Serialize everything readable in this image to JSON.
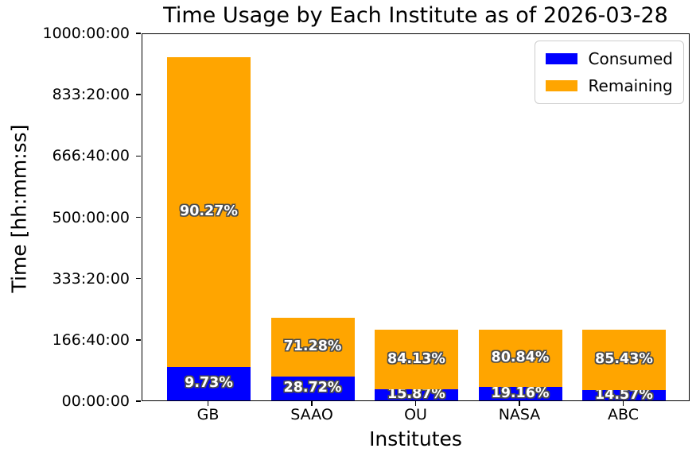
{
  "figure": {
    "title": "Time Usage by Each Institute as of 2026-03-28",
    "xlabel": "Institutes",
    "ylabel": "Time [hh:mm:ss]"
  },
  "colors": {
    "consumed": "#0000ff",
    "remaining": "#ffa500",
    "bar_label_text": "#ffffff",
    "bar_label_outline": "#4d4d4d",
    "axis": "#000000",
    "legend_border": "#cccccc"
  },
  "legend": {
    "items": [
      {
        "label": "Consumed",
        "color": "#0000ff"
      },
      {
        "label": "Remaining",
        "color": "#ffa500"
      }
    ]
  },
  "chart_data": {
    "type": "bar",
    "stacked": true,
    "title": "Time Usage by Each Institute as of 2026-03-28",
    "xlabel": "Institutes",
    "ylabel": "Time [hh:mm:ss]",
    "categories": [
      "GB",
      "SAAO",
      "OU",
      "NASA",
      "ABC"
    ],
    "ylim_hours": [
      0,
      1000
    ],
    "y_ticks": [
      {
        "hours": 0,
        "label": "00:00:00"
      },
      {
        "hours": 166.6667,
        "label": "166:40:00"
      },
      {
        "hours": 333.3333,
        "label": "333:20:00"
      },
      {
        "hours": 500,
        "label": "500:00:00"
      },
      {
        "hours": 666.6667,
        "label": "666:40:00"
      },
      {
        "hours": 833.3333,
        "label": "833:20:00"
      },
      {
        "hours": 1000,
        "label": "1000:00:00"
      }
    ],
    "grid": false,
    "legend_position": "upper right",
    "series": [
      {
        "name": "Consumed",
        "color": "#0000ff",
        "values_hours": [
          90.8,
          64.6,
          30.5,
          36.8,
          28.0
        ],
        "percent_labels": [
          "9.73%",
          "28.72%",
          "15.87%",
          "19.16%",
          "14.57%"
        ]
      },
      {
        "name": "Remaining",
        "color": "#ffa500",
        "values_hours": [
          842.5,
          160.4,
          161.5,
          155.2,
          164.0
        ],
        "percent_labels": [
          "90.27%",
          "71.28%",
          "84.13%",
          "80.84%",
          "85.43%"
        ]
      }
    ],
    "totals_hours": [
      933.3,
      225.0,
      192.0,
      192.0,
      192.0
    ]
  }
}
